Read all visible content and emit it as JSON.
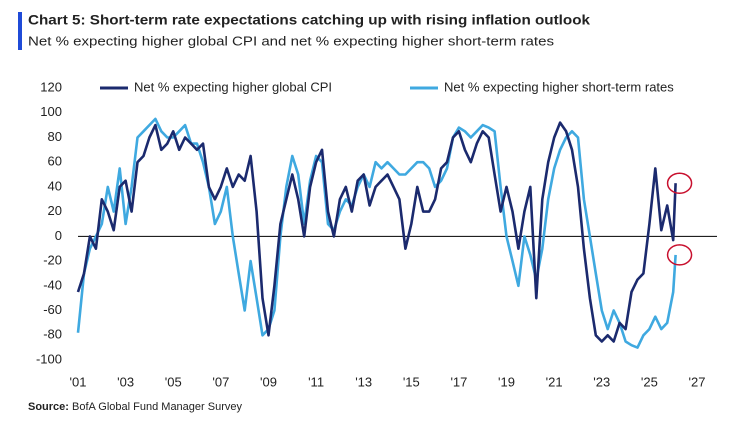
{
  "chart_data": {
    "type": "line",
    "title": "Chart 5: Short-term rate expectations catching up with rising inflation outlook",
    "subtitle": "Net % expecting higher global CPI and net % expecting higher short-term rates",
    "source_label": "Source:",
    "source_text": "BofA Global Fund Manager Survey",
    "xlim": [
      2001,
      2027
    ],
    "xticks": [
      {
        "value": 2001,
        "label": "'01"
      },
      {
        "value": 2003,
        "label": "'03"
      },
      {
        "value": 2005,
        "label": "'05"
      },
      {
        "value": 2007,
        "label": "'07"
      },
      {
        "value": 2009,
        "label": "'09"
      },
      {
        "value": 2011,
        "label": "'11"
      },
      {
        "value": 2013,
        "label": "'13"
      },
      {
        "value": 2015,
        "label": "'15"
      },
      {
        "value": 2017,
        "label": "'17"
      },
      {
        "value": 2019,
        "label": "'19"
      },
      {
        "value": 2021,
        "label": "'21"
      },
      {
        "value": 2023,
        "label": "'23"
      },
      {
        "value": 2025,
        "label": "'25"
      },
      {
        "value": 2027,
        "label": "'27"
      }
    ],
    "ylim": [
      -100,
      120
    ],
    "yticks": [
      -100,
      -80,
      -60,
      -40,
      -20,
      0,
      20,
      40,
      60,
      80,
      100,
      120
    ],
    "x": [
      2001.0,
      2001.25,
      2001.5,
      2001.75,
      2002.0,
      2002.25,
      2002.5,
      2002.75,
      2003.0,
      2003.25,
      2003.5,
      2003.75,
      2004.0,
      2004.25,
      2004.5,
      2004.75,
      2005.0,
      2005.25,
      2005.5,
      2005.75,
      2006.0,
      2006.25,
      2006.5,
      2006.75,
      2007.0,
      2007.25,
      2007.5,
      2007.75,
      2008.0,
      2008.25,
      2008.5,
      2008.75,
      2009.0,
      2009.25,
      2009.5,
      2009.75,
      2010.0,
      2010.25,
      2010.5,
      2010.75,
      2011.0,
      2011.25,
      2011.5,
      2011.75,
      2012.0,
      2012.25,
      2012.5,
      2012.75,
      2013.0,
      2013.25,
      2013.5,
      2013.75,
      2014.0,
      2014.25,
      2014.5,
      2014.75,
      2015.0,
      2015.25,
      2015.5,
      2015.75,
      2016.0,
      2016.25,
      2016.5,
      2016.75,
      2017.0,
      2017.25,
      2017.5,
      2017.75,
      2018.0,
      2018.25,
      2018.5,
      2018.75,
      2019.0,
      2019.25,
      2019.5,
      2019.75,
      2020.0,
      2020.25,
      2020.5,
      2020.75,
      2021.0,
      2021.25,
      2021.5,
      2021.75,
      2022.0,
      2022.25,
      2022.5,
      2022.75,
      2023.0,
      2023.25,
      2023.5,
      2023.75,
      2024.0,
      2024.25,
      2024.5,
      2024.75,
      2025.0,
      2025.25,
      2025.5,
      2025.75,
      2026.0,
      2026.1
    ],
    "series": [
      {
        "name": "Net % expecting higher global CPI",
        "color": "#1b2a6e",
        "values": [
          -45,
          -30,
          0,
          -10,
          30,
          20,
          5,
          40,
          45,
          20,
          60,
          65,
          80,
          90,
          70,
          75,
          85,
          70,
          80,
          75,
          70,
          75,
          40,
          30,
          40,
          55,
          40,
          50,
          45,
          65,
          20,
          -50,
          -80,
          -40,
          10,
          30,
          50,
          30,
          0,
          40,
          60,
          70,
          20,
          0,
          30,
          40,
          20,
          45,
          50,
          25,
          40,
          45,
          50,
          40,
          30,
          -10,
          10,
          40,
          20,
          20,
          30,
          55,
          60,
          80,
          85,
          70,
          60,
          75,
          85,
          80,
          50,
          20,
          40,
          20,
          -10,
          20,
          40,
          -50,
          30,
          60,
          80,
          92,
          85,
          70,
          40,
          -10,
          -50,
          -80,
          -85,
          -80,
          -85,
          -70,
          -75,
          -45,
          -35,
          -30,
          10,
          55,
          5,
          25,
          -3,
          43
        ]
      },
      {
        "name": "Net % expecting higher short-term rates",
        "color": "#3fa9e0",
        "values": [
          -78,
          -30,
          -10,
          0,
          10,
          40,
          20,
          55,
          10,
          40,
          80,
          85,
          90,
          95,
          85,
          80,
          80,
          85,
          90,
          75,
          75,
          60,
          40,
          10,
          20,
          40,
          0,
          -30,
          -60,
          -20,
          -50,
          -80,
          -75,
          -60,
          0,
          40,
          65,
          50,
          10,
          45,
          65,
          60,
          10,
          5,
          20,
          30,
          25,
          40,
          50,
          40,
          60,
          55,
          60,
          55,
          50,
          50,
          55,
          60,
          60,
          55,
          40,
          45,
          55,
          80,
          88,
          85,
          80,
          85,
          90,
          88,
          85,
          40,
          0,
          -20,
          -40,
          0,
          -15,
          -35,
          -10,
          30,
          55,
          70,
          80,
          85,
          80,
          30,
          0,
          -30,
          -60,
          -75,
          -60,
          -70,
          -85,
          -88,
          -90,
          -80,
          -75,
          -65,
          -75,
          -70,
          -45,
          -15
        ]
      }
    ]
  }
}
